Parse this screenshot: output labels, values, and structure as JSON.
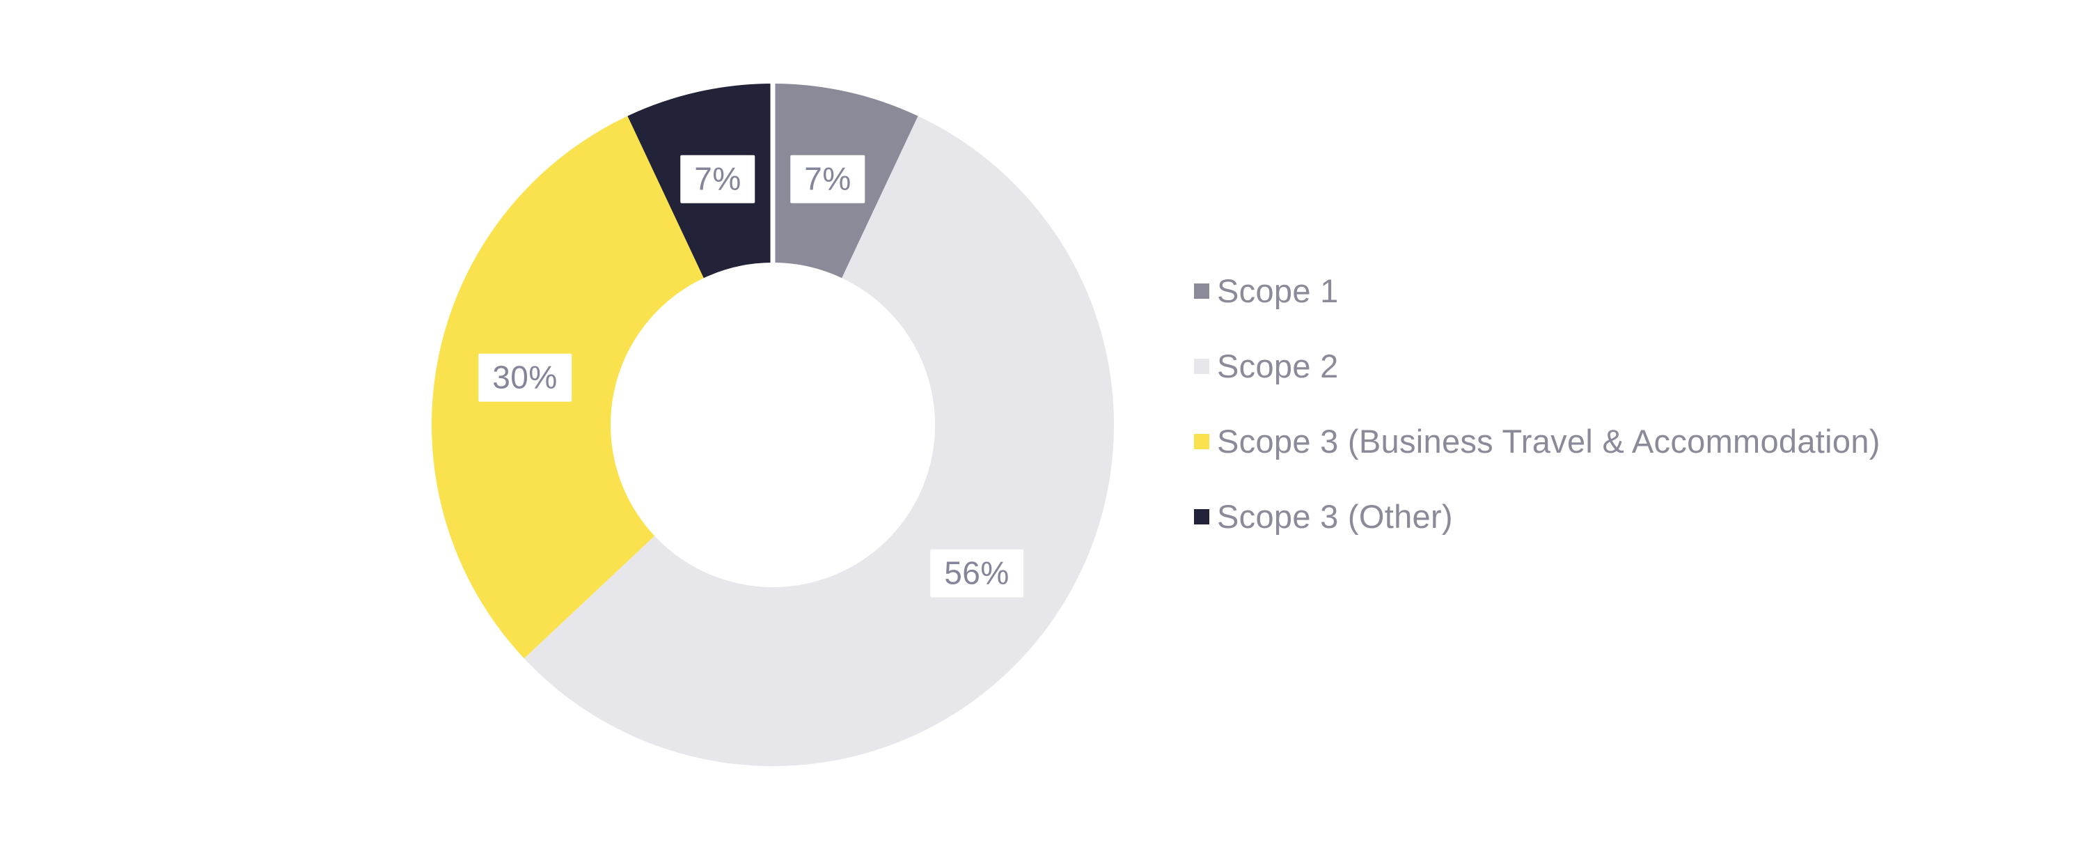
{
  "chart_data": {
    "type": "pie",
    "subtype": "donut",
    "title": "",
    "total": 100,
    "direction": "clockwise",
    "start_angle_deg": 0,
    "hole_ratio": 0.48,
    "legend_position": "right",
    "background_color": "#FFFFFF",
    "label_text_color": "#84849A",
    "label_background_color": "#FFFFFF",
    "legend_text_color": "#8A8A99",
    "slices": [
      {
        "name": "Scope 1",
        "value": 7,
        "label": "7%",
        "color": "#8A8A99"
      },
      {
        "name": "Scope 2",
        "value": 56,
        "label": "56%",
        "color": "#E6E6EB"
      },
      {
        "name": "Scope 3 (Business Travel & Accommodation)",
        "value": 30,
        "label": "30%",
        "color": "#FAE24E"
      },
      {
        "name": "Scope 3 (Other)",
        "value": 7,
        "label": "7%",
        "color": "#222238"
      }
    ]
  }
}
